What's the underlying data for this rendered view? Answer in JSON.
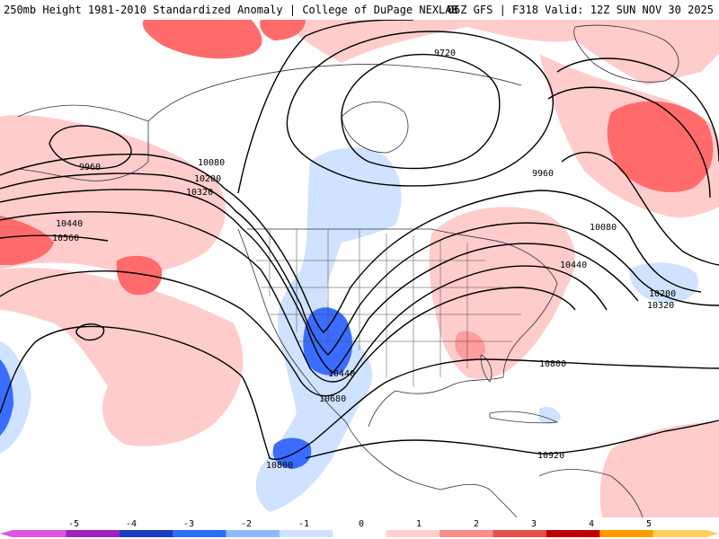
{
  "header": {
    "left": "250mb Height 1981-2010 Standardized Anomaly | College of DuPage NEXLAB",
    "right": "06Z GFS | F318 Valid: 12Z SUN NOV 30 2025"
  },
  "contour_labels": [
    "9720",
    "9960",
    "9960",
    "10080",
    "10200",
    "10320",
    "10440",
    "10560",
    "10080",
    "10440",
    "10200",
    "10320",
    "10440",
    "10680",
    "10800",
    "10800",
    "10920"
  ],
  "colorbar": {
    "ticks": [
      "-5",
      "-4",
      "-3",
      "-2",
      "-1",
      "0",
      "1",
      "2",
      "3",
      "4",
      "5"
    ],
    "colors": [
      "#e055e0",
      "#a020c0",
      "#1a3cc0",
      "#2e6cff",
      "#8fb8ff",
      "#cfe2ff",
      "#ffffff",
      "#ffd0d0",
      "#ff8c8c",
      "#e8504a",
      "#c00000",
      "#ff9a00",
      "#ffd060"
    ]
  },
  "palette": {
    "neg1": "#cfe2ff",
    "neg2": "#3a6cff",
    "pos1": "#ffcccc",
    "pos2": "#ff6b6b",
    "contour": "#000000",
    "geo": "#333333"
  }
}
